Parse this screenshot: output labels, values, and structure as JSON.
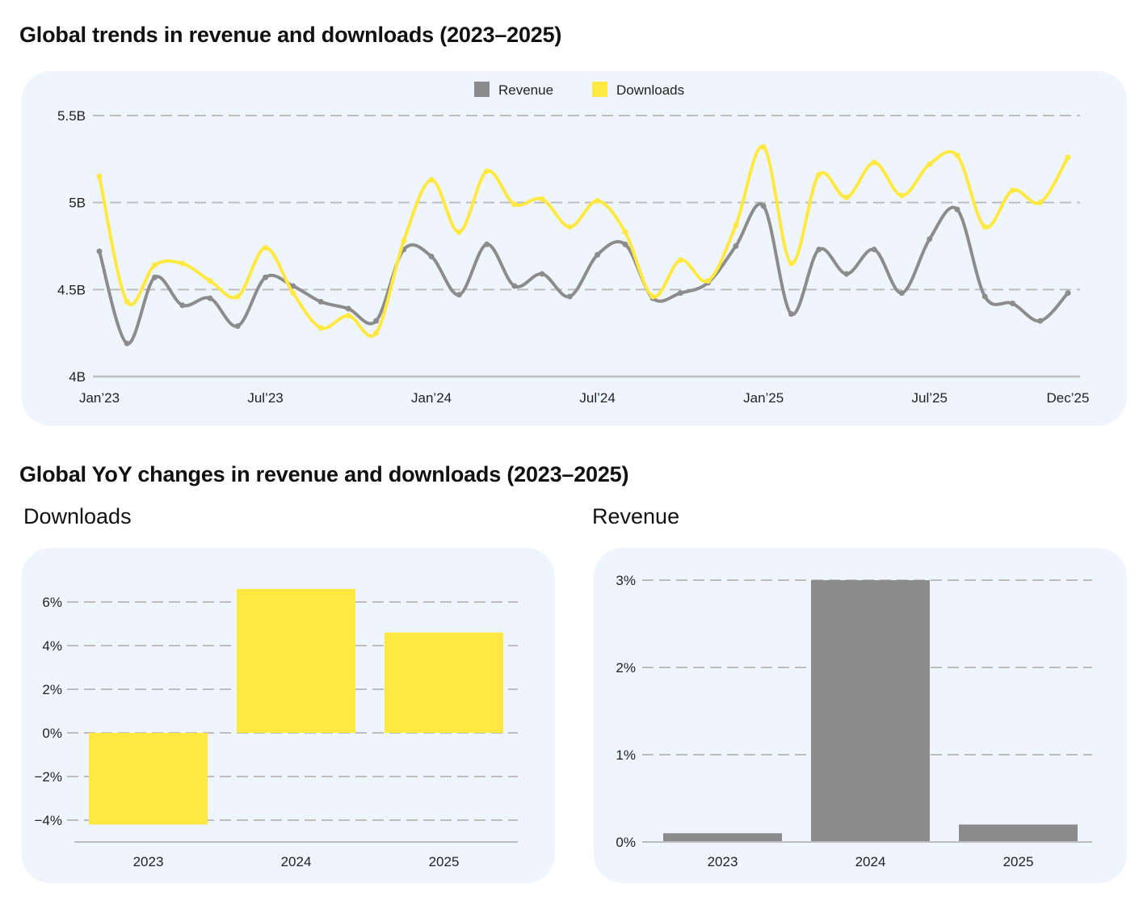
{
  "titles": {
    "main": "Global trends in revenue and downloads (2023–2025)",
    "yoy": "Global YoY changes in revenue and downloads (2023–2025)",
    "downloads": "Downloads",
    "revenue": "Revenue"
  },
  "colors": {
    "revenue": "#8c8c8c",
    "downloads": "#ffe83f",
    "panel": "#eff5fc",
    "grid": "#bdbdbd"
  },
  "chart_data": [
    {
      "type": "line",
      "title": "Global trends in revenue and downloads (2023–2025)",
      "legend": [
        "Revenue",
        "Downloads"
      ],
      "legend_position": "top-center",
      "ylim": [
        4,
        5.5
      ],
      "yticks": [
        4,
        4.5,
        5,
        5.5
      ],
      "ytick_labels": [
        "4B",
        "4.5B",
        "5B",
        "5.5B"
      ],
      "xtick_labels": [
        {
          "index": 0,
          "label": "Jan’23"
        },
        {
          "index": 6,
          "label": "Jul’23"
        },
        {
          "index": 12,
          "label": "Jan’24"
        },
        {
          "index": 18,
          "label": "Jul’24"
        },
        {
          "index": 24,
          "label": "Jan’25"
        },
        {
          "index": 30,
          "label": "Jul’25"
        },
        {
          "index": 35,
          "label": "Dec’25"
        }
      ],
      "series": [
        {
          "name": "Revenue",
          "values": [
            4.72,
            4.19,
            4.57,
            4.41,
            4.45,
            4.29,
            4.57,
            4.52,
            4.43,
            4.39,
            4.32,
            4.73,
            4.69,
            4.47,
            4.76,
            4.52,
            4.59,
            4.46,
            4.7,
            4.76,
            4.45,
            4.48,
            4.54,
            4.75,
            4.98,
            4.36,
            4.73,
            4.59,
            4.73,
            4.48,
            4.79,
            4.96,
            4.46,
            4.42,
            4.32,
            4.48
          ]
        },
        {
          "name": "Downloads",
          "values": [
            5.15,
            4.43,
            4.64,
            4.65,
            4.55,
            4.46,
            4.74,
            4.48,
            4.28,
            4.35,
            4.25,
            4.78,
            5.13,
            4.83,
            5.18,
            4.99,
            5.02,
            4.86,
            5.01,
            4.83,
            4.46,
            4.67,
            4.55,
            4.87,
            5.32,
            4.65,
            5.16,
            5.03,
            5.23,
            5.04,
            5.22,
            5.27,
            4.86,
            5.07,
            5.0,
            5.26
          ]
        }
      ]
    },
    {
      "type": "bar",
      "title": "Downloads",
      "categories": [
        "2023",
        "2024",
        "2025"
      ],
      "values": [
        -4.2,
        6.6,
        4.6
      ],
      "yticks": [
        -4,
        -2,
        0,
        2,
        4,
        6
      ],
      "ytick_labels": [
        "−4%",
        "−2%",
        "0%",
        "2%",
        "4%",
        "6%"
      ],
      "ylim": [
        -4.9,
        8.5
      ]
    },
    {
      "type": "bar",
      "title": "Revenue",
      "categories": [
        "2023",
        "2024",
        "2025"
      ],
      "values": [
        0.1,
        3.0,
        0.2
      ],
      "yticks": [
        0,
        1,
        2,
        3
      ],
      "ytick_labels": [
        "0%",
        "1%",
        "2%",
        "3%"
      ],
      "ylim": [
        0,
        3.37
      ]
    }
  ]
}
